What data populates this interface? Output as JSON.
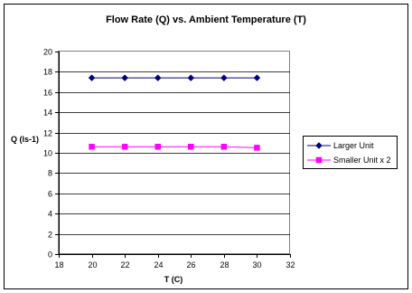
{
  "chart_data": {
    "type": "line",
    "title": "Flow Rate (Q) vs. Ambient Temperature (T)",
    "xlabel": "T (C)",
    "ylabel": "Q (ls-1)",
    "xlim": [
      18,
      32
    ],
    "ylim": [
      0,
      20
    ],
    "x_ticks": [
      18,
      20,
      22,
      24,
      26,
      28,
      30,
      32
    ],
    "y_ticks": [
      0,
      2,
      4,
      6,
      8,
      10,
      12,
      14,
      16,
      18,
      20
    ],
    "grid": "horizontal",
    "legend_position": "right",
    "x": [
      20,
      22,
      24,
      26,
      28,
      30
    ],
    "series": [
      {
        "name": "Larger Unit",
        "values": [
          17.4,
          17.4,
          17.4,
          17.4,
          17.4,
          17.4
        ],
        "color": "#000080",
        "marker": "diamond"
      },
      {
        "name": "Smaller Unit x 2",
        "values": [
          10.6,
          10.6,
          10.6,
          10.6,
          10.6,
          10.5
        ],
        "color": "#ff00ff",
        "marker": "square"
      }
    ],
    "colors": {
      "plot_background": "#c0c0c0",
      "plot_border": "#808080",
      "gridline": "#000000"
    }
  }
}
